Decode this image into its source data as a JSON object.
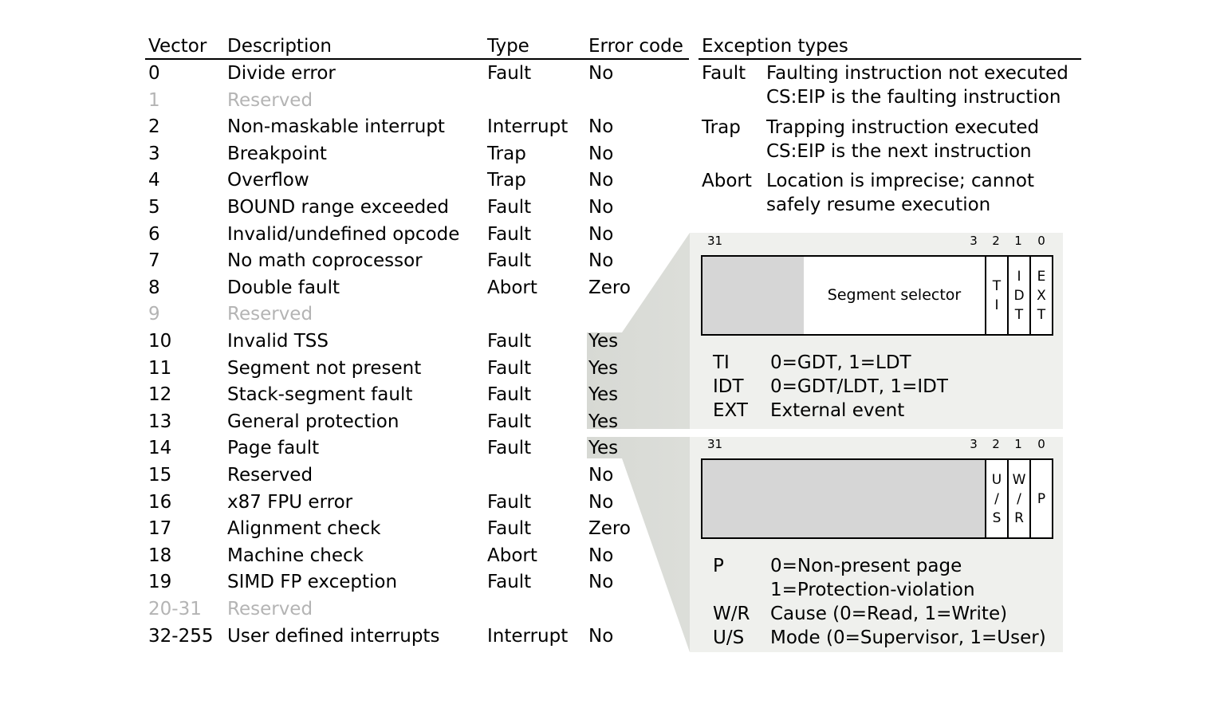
{
  "table": {
    "headers": {
      "vector": "Vector",
      "description": "Description",
      "type": "Type",
      "error": "Error code"
    },
    "rows": [
      {
        "vector": "0",
        "description": "Divide error",
        "type": "Fault",
        "error": "No"
      },
      {
        "vector": "1",
        "description": "Reserved",
        "type": "",
        "error": "",
        "reserved": true
      },
      {
        "vector": "2",
        "description": "Non-maskable interrupt",
        "type": "Interrupt",
        "error": "No"
      },
      {
        "vector": "3",
        "description": "Breakpoint",
        "type": "Trap",
        "error": "No"
      },
      {
        "vector": "4",
        "description": "Overflow",
        "type": "Trap",
        "error": "No"
      },
      {
        "vector": "5",
        "description": "BOUND range exceeded",
        "type": "Fault",
        "error": "No"
      },
      {
        "vector": "6",
        "description": "Invalid/undefined opcode",
        "type": "Fault",
        "error": "No"
      },
      {
        "vector": "7",
        "description": "No math coprocessor",
        "type": "Fault",
        "error": "No"
      },
      {
        "vector": "8",
        "description": "Double fault",
        "type": "Abort",
        "error": "Zero"
      },
      {
        "vector": "9",
        "description": "Reserved",
        "type": "",
        "error": "",
        "reserved": true
      },
      {
        "vector": "10",
        "description": "Invalid TSS",
        "type": "Fault",
        "error": "Yes",
        "highlight": true
      },
      {
        "vector": "11",
        "description": "Segment not present",
        "type": "Fault",
        "error": "Yes",
        "highlight": true
      },
      {
        "vector": "12",
        "description": "Stack-segment fault",
        "type": "Fault",
        "error": "Yes",
        "highlight": true
      },
      {
        "vector": "13",
        "description": "General protection",
        "type": "Fault",
        "error": "Yes",
        "highlight": true
      },
      {
        "vector": "14",
        "description": "Page fault",
        "type": "Fault",
        "error": "Yes",
        "highlight": true
      },
      {
        "vector": "15",
        "description": "Reserved",
        "type": "",
        "error": "No"
      },
      {
        "vector": "16",
        "description": "x87 FPU error",
        "type": "Fault",
        "error": "No"
      },
      {
        "vector": "17",
        "description": "Alignment check",
        "type": "Fault",
        "error": "Zero"
      },
      {
        "vector": "18",
        "description": "Machine check",
        "type": "Abort",
        "error": "No"
      },
      {
        "vector": "19",
        "description": "SIMD FP exception",
        "type": "Fault",
        "error": "No"
      },
      {
        "vector": "20-31",
        "description": "Reserved",
        "type": "",
        "error": "",
        "reserved": true
      },
      {
        "vector": "32-255",
        "description": "User defined interrupts",
        "type": "Interrupt",
        "error": "No"
      }
    ]
  },
  "exception_types": {
    "title": "Exception types",
    "items": [
      {
        "name": "Fault",
        "lines": [
          "Faulting instruction not executed",
          "CS:EIP is the faulting instruction"
        ]
      },
      {
        "name": "Trap",
        "lines": [
          "Trapping instruction executed",
          "CS:EIP is the next instruction"
        ]
      },
      {
        "name": "Abort",
        "lines": [
          "Location is imprecise; cannot",
          "safely resume execution"
        ]
      }
    ]
  },
  "selector_error": {
    "bit_numbers": [
      "31",
      "3",
      "2",
      "1",
      "0"
    ],
    "field_label": "Segment selector",
    "bits": [
      {
        "label": "T I",
        "chars": [
          "T",
          "I"
        ]
      },
      {
        "label": "IDT",
        "chars": [
          "I",
          "D",
          "T"
        ]
      },
      {
        "label": "EXT",
        "chars": [
          "E",
          "X",
          "T"
        ]
      }
    ],
    "legend": [
      {
        "key": "TI",
        "value": "0=GDT, 1=LDT"
      },
      {
        "key": "IDT",
        "value": "0=GDT/LDT, 1=IDT"
      },
      {
        "key": "EXT",
        "value": "External event"
      }
    ]
  },
  "page_fault_error": {
    "bit_numbers": [
      "31",
      "3",
      "2",
      "1",
      "0"
    ],
    "bits": [
      {
        "label": "U/S",
        "chars": [
          "U",
          "/",
          "S"
        ]
      },
      {
        "label": "W/R",
        "chars": [
          "W",
          "/",
          "R"
        ]
      },
      {
        "label": "P",
        "chars": [
          "P"
        ]
      }
    ],
    "legend": [
      {
        "key": "P",
        "value": "0=Non-present page"
      },
      {
        "key": "",
        "value": "1=Protection-violation"
      },
      {
        "key": "W/R",
        "value": "Cause (0=Read, 1=Write)"
      },
      {
        "key": "U/S",
        "value": "Mode (0=Supervisor, 1=User)"
      }
    ]
  },
  "colors": {
    "panel": "#eff0ed",
    "highlight": "#d7d9d4",
    "reserved_text": "#b4b4b4",
    "unused_bits": "#d6d6d6"
  }
}
